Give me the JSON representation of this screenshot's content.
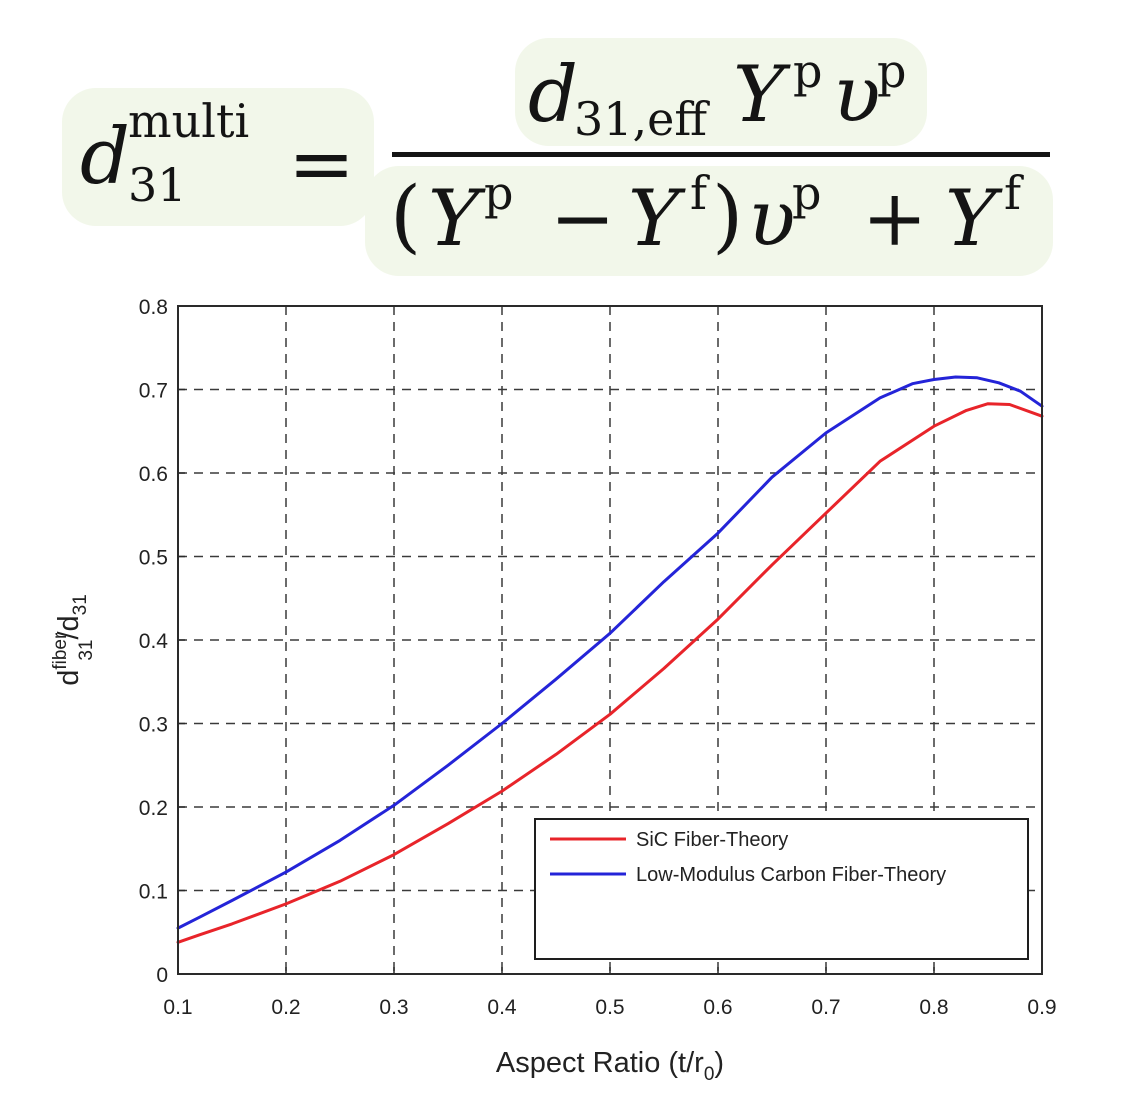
{
  "formula": {
    "lhs_base": "d",
    "lhs_sup": "multi",
    "lhs_sub": "31",
    "equals": "=",
    "num_d": "d",
    "num_d_sub": "31,eff",
    "num_Y": "Y",
    "num_Y_sup": "p",
    "num_v": "υ",
    "num_v_sup": "p",
    "den_open": "(",
    "den_Y1": "Y",
    "den_Y1_sup": "p",
    "den_minus": "−",
    "den_Y2": "Y",
    "den_Y2_sup": "f",
    "den_close": ")",
    "den_v": "υ",
    "den_v_sup": "p",
    "den_plus": "+",
    "den_Y3": "Y",
    "den_Y3_sup": "f"
  },
  "chart_data": {
    "type": "line",
    "title": "",
    "xlabel": "Aspect Ratio (t/r",
    "xlabel_sub": "0",
    "xlabel_close": ")",
    "ylabel_base": "d",
    "ylabel_sup": "fiber",
    "ylabel_sub": "31",
    "ylabel_slash": "/d",
    "ylabel_sub2": "31",
    "xlim": [
      0.1,
      0.9
    ],
    "ylim": [
      0,
      0.8
    ],
    "xticks": [
      "0.1",
      "0.2",
      "0.3",
      "0.4",
      "0.5",
      "0.6",
      "0.7",
      "0.8",
      "0.9"
    ],
    "yticks": [
      "0",
      "0.1",
      "0.2",
      "0.3",
      "0.4",
      "0.5",
      "0.6",
      "0.7",
      "0.8"
    ],
    "grid": true,
    "grid_style": "dashed",
    "legend_position": "lower-right",
    "series": [
      {
        "name": "SiC Fiber-Theory",
        "color": "#e8242a",
        "x": [
          0.1,
          0.12,
          0.15,
          0.2,
          0.25,
          0.3,
          0.35,
          0.4,
          0.45,
          0.5,
          0.55,
          0.6,
          0.65,
          0.7,
          0.75,
          0.8,
          0.83,
          0.85,
          0.87,
          0.9
        ],
        "y": [
          0.038,
          0.047,
          0.06,
          0.084,
          0.111,
          0.143,
          0.18,
          0.219,
          0.263,
          0.311,
          0.366,
          0.425,
          0.49,
          0.552,
          0.614,
          0.656,
          0.675,
          0.683,
          0.682,
          0.668
        ]
      },
      {
        "name": "Low-Modulus Carbon Fiber-Theory",
        "color": "#2424d8",
        "x": [
          0.1,
          0.12,
          0.15,
          0.2,
          0.25,
          0.3,
          0.35,
          0.4,
          0.45,
          0.5,
          0.55,
          0.6,
          0.65,
          0.7,
          0.75,
          0.78,
          0.8,
          0.82,
          0.84,
          0.86,
          0.88,
          0.9
        ],
        "y": [
          0.055,
          0.068,
          0.088,
          0.122,
          0.16,
          0.202,
          0.25,
          0.3,
          0.353,
          0.408,
          0.47,
          0.528,
          0.595,
          0.648,
          0.69,
          0.707,
          0.712,
          0.715,
          0.714,
          0.708,
          0.698,
          0.68
        ]
      }
    ]
  }
}
